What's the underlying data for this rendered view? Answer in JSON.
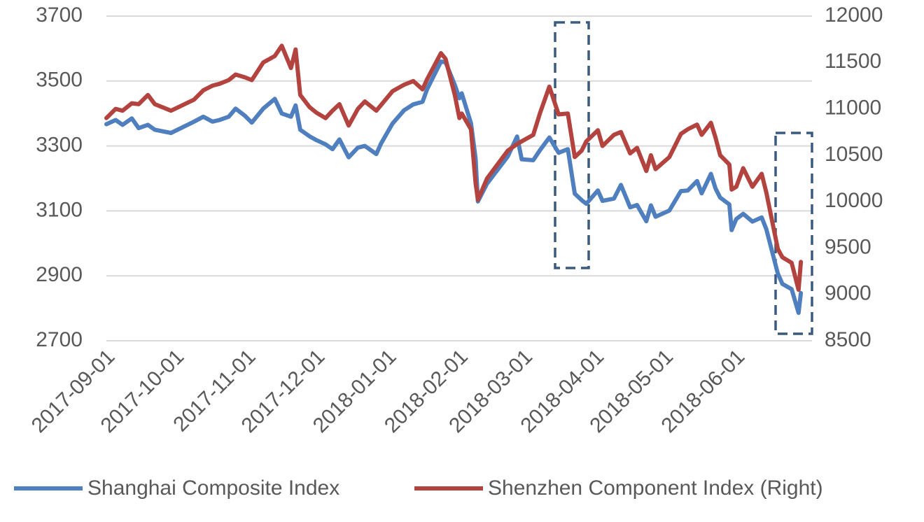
{
  "chart_data": {
    "type": "line",
    "x": [
      "2017-09-01",
      "2017-09-05",
      "2017-09-08",
      "2017-09-12",
      "2017-09-15",
      "2017-09-19",
      "2017-09-22",
      "2017-09-29",
      "2017-10-09",
      "2017-10-13",
      "2017-10-17",
      "2017-10-20",
      "2017-10-24",
      "2017-10-27",
      "2017-10-31",
      "2017-11-03",
      "2017-11-08",
      "2017-11-13",
      "2017-11-16",
      "2017-11-20",
      "2017-11-22",
      "2017-11-24",
      "2017-11-28",
      "2017-12-01",
      "2017-12-05",
      "2017-12-08",
      "2017-12-11",
      "2017-12-15",
      "2017-12-19",
      "2017-12-22",
      "2017-12-27",
      "2017-12-29",
      "2018-01-03",
      "2018-01-08",
      "2018-01-12",
      "2018-01-16",
      "2018-01-18",
      "2018-01-24",
      "2018-01-26",
      "2018-01-30",
      "2018-02-01",
      "2018-02-02",
      "2018-02-06",
      "2018-02-08",
      "2018-02-09",
      "2018-02-13",
      "2018-02-22",
      "2018-02-26",
      "2018-02-28",
      "2018-03-05",
      "2018-03-08",
      "2018-03-12",
      "2018-03-16",
      "2018-03-20",
      "2018-03-23",
      "2018-03-26",
      "2018-03-28",
      "2018-04-02",
      "2018-04-04",
      "2018-04-09",
      "2018-04-12",
      "2018-04-16",
      "2018-04-19",
      "2018-04-23",
      "2018-04-25",
      "2018-04-27",
      "2018-05-03",
      "2018-05-08",
      "2018-05-11",
      "2018-05-15",
      "2018-05-17",
      "2018-05-21",
      "2018-05-23",
      "2018-05-25",
      "2018-05-29",
      "2018-05-30",
      "2018-06-01",
      "2018-06-04",
      "2018-06-08",
      "2018-06-12",
      "2018-06-14",
      "2018-06-19",
      "2018-06-21",
      "2018-06-25",
      "2018-06-28",
      "2018-06-29"
    ],
    "series": [
      {
        "name": "Shanghai Composite Index",
        "color": "#4f7fbe",
        "values": [
          3367,
          3380,
          3365,
          3385,
          3355,
          3365,
          3350,
          3340,
          3375,
          3390,
          3375,
          3380,
          3390,
          3415,
          3393,
          3372,
          3415,
          3445,
          3400,
          3390,
          3425,
          3350,
          3330,
          3318,
          3305,
          3290,
          3320,
          3265,
          3295,
          3300,
          3275,
          3307,
          3369,
          3410,
          3428,
          3436,
          3475,
          3560,
          3558,
          3488,
          3447,
          3462,
          3370,
          3262,
          3129,
          3184,
          3268,
          3329,
          3259,
          3256,
          3288,
          3326,
          3279,
          3290,
          3153,
          3133,
          3122,
          3163,
          3131,
          3138,
          3180,
          3111,
          3118,
          3068,
          3117,
          3082,
          3101,
          3161,
          3163,
          3192,
          3154,
          3214,
          3169,
          3141,
          3120,
          3041,
          3075,
          3091,
          3067,
          3080,
          3044,
          2907,
          2875,
          2859,
          2786,
          2847
        ]
      },
      {
        "name": "Shenzhen Component Index (Right)",
        "color": "#b3433f",
        "axis": "y2",
        "values": [
          10900,
          11000,
          10980,
          11060,
          11050,
          11150,
          11050,
          10980,
          11100,
          11200,
          11250,
          11270,
          11310,
          11370,
          11340,
          11310,
          11500,
          11570,
          11680,
          11440,
          11640,
          11150,
          11020,
          10960,
          10900,
          10980,
          11050,
          10820,
          11000,
          11080,
          10980,
          11040,
          11190,
          11260,
          11300,
          11210,
          11320,
          11600,
          11540,
          11150,
          10900,
          10950,
          10780,
          10200,
          10020,
          10250,
          10550,
          10620,
          10650,
          10720,
          10960,
          11240,
          10940,
          10950,
          10480,
          10550,
          10650,
          10770,
          10600,
          10720,
          10750,
          10520,
          10580,
          10330,
          10500,
          10350,
          10480,
          10730,
          10780,
          10830,
          10720,
          10850,
          10690,
          10500,
          10400,
          10130,
          10160,
          10360,
          10160,
          10300,
          10100,
          9490,
          9400,
          9340,
          9050,
          9350
        ]
      }
    ],
    "xlim": [
      "2017-09-01",
      "2018-07-02"
    ],
    "xticks": [
      "2017-09-01",
      "2017-10-01",
      "2017-11-01",
      "2017-12-01",
      "2018-01-01",
      "2018-02-01",
      "2018-03-01",
      "2018-04-01",
      "2018-05-01",
      "2018-06-01"
    ],
    "ylim": [
      2700,
      3700
    ],
    "yticks": [
      2700,
      2900,
      3100,
      3300,
      3500,
      3700
    ],
    "y2lim": [
      8500,
      12000
    ],
    "y2ticks": [
      8500,
      9000,
      9500,
      10000,
      10500,
      11000,
      11500,
      12000
    ],
    "grid": true
  }
}
